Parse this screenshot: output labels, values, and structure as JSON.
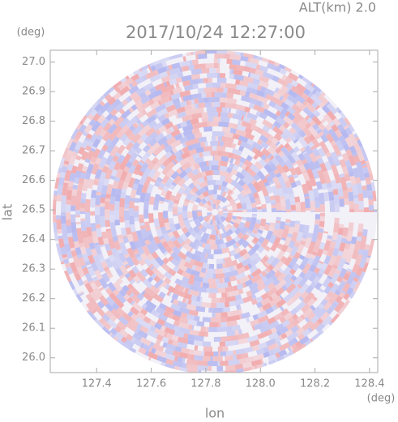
{
  "chart_data": {
    "type": "radar-ppi",
    "title": "2017/10/24 12:27:00",
    "subtitle": "ALT(km) 2.0",
    "x_label": "lon",
    "y_label": "lat",
    "x_unit": "(deg)",
    "y_unit": "(deg)",
    "xlim": [
      127.23,
      128.43
    ],
    "ylim": [
      25.95,
      27.04
    ],
    "xticks": [
      127.4,
      127.6,
      127.8,
      {
        "value": 128.0,
        "label": "128.0"
      },
      128.2,
      128.4
    ],
    "yticks": [
      {
        "value": 26.0,
        "label": "26.0"
      },
      26.1,
      26.2,
      26.3,
      26.4,
      26.5,
      26.6,
      26.7,
      26.8,
      26.9,
      {
        "value": 27.0,
        "label": "27.0"
      }
    ]
  }
}
